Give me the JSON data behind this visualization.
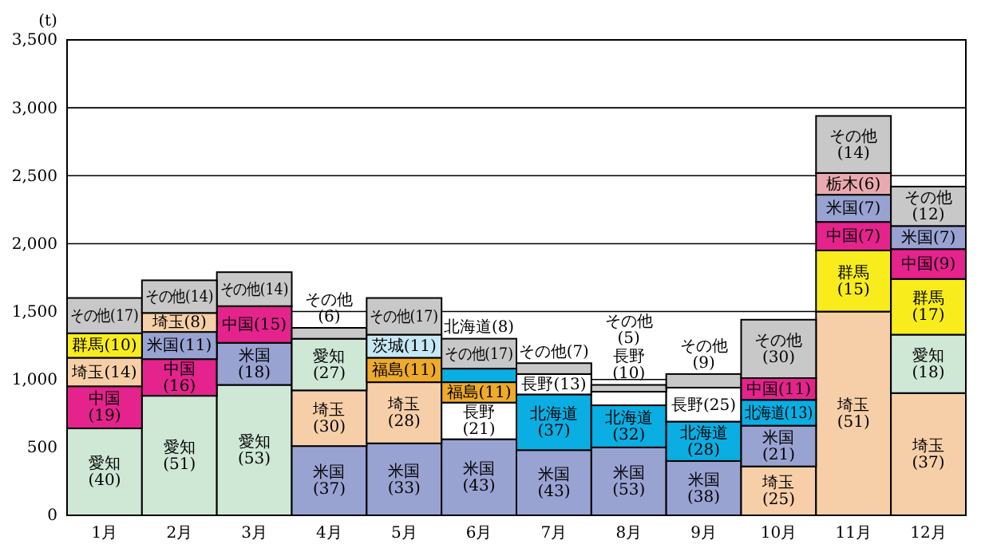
{
  "chart_data": {
    "type": "bar",
    "stacked": true,
    "ylabel": "(t)",
    "categories": [
      "1月",
      "2月",
      "3月",
      "4月",
      "5月",
      "6月",
      "7月",
      "8月",
      "9月",
      "10月",
      "11月",
      "12月"
    ],
    "ylim": [
      0,
      3500
    ],
    "yticks": [
      0,
      500,
      {
        "value": 1000,
        "label": "1,000"
      },
      {
        "value": 1500,
        "label": "1,500"
      },
      {
        "value": 2000,
        "label": "2,000"
      },
      {
        "value": 2500,
        "label": "2,500"
      },
      {
        "value": 3000,
        "label": "3,000"
      },
      {
        "value": 3500,
        "label": "3,500"
      }
    ],
    "grid": "y",
    "series": [
      {
        "values": [
          640,
          880,
          960,
          510,
          530,
          560,
          480,
          500,
          400,
          360,
          1500,
          900
        ],
        "colors": [
          "#cfe8d6",
          "#cfe8d6",
          "#cfe8d6",
          "#99a3d2",
          "#99a3d2",
          "#99a3d2",
          "#99a3d2",
          "#99a3d2",
          "#99a3d2",
          "#f6cfa8",
          "#f6cfa8",
          "#f6cfa8"
        ]
      },
      {
        "values": [
          310,
          270,
          310,
          410,
          450,
          270,
          410,
          310,
          290,
          300,
          450,
          430
        ],
        "colors": [
          "#e4238c",
          "#e4238c",
          "#99a3d2",
          "#f6cfa8",
          "#f6cfa8",
          "#ffffff",
          "#0aaee2",
          "#0aaee2",
          "#0aaee2",
          "#99a3d2",
          "#f8ec1d",
          "#cfe8d6"
        ]
      },
      {
        "values": [
          210,
          200,
          270,
          380,
          180,
          150,
          150,
          100,
          250,
          190,
          210,
          410
        ],
        "colors": [
          "#f6cfa8",
          "#99a3d2",
          "#e4238c",
          "#cfe8d6",
          "#eeaa2a",
          "#eeaa2a",
          "#ffffff",
          "#ffffff",
          "#ffffff",
          "#0aaee2",
          "#e4238c",
          "#f8ec1d"
        ]
      },
      {
        "values": [
          180,
          140,
          250,
          80,
          170,
          100,
          80,
          50,
          100,
          160,
          200,
          220
        ],
        "colors": [
          "#f8ec1d",
          "#f6cfa8",
          "#c8c8c8",
          "#c8c8c8",
          "#c6e8f4",
          "#0aaee2",
          "#c8c8c8",
          "#c8c8c8",
          "#c8c8c8",
          "#e4238c",
          "#99a3d2",
          "#e4238c"
        ]
      },
      {
        "values": [
          260,
          240,
          null,
          null,
          270,
          220,
          null,
          null,
          null,
          430,
          160,
          170
        ],
        "colors": [
          "#c8c8c8",
          "#c8c8c8",
          null,
          null,
          "#c8c8c8",
          "#c8c8c8",
          null,
          null,
          null,
          "#c8c8c8",
          "#e8aab0",
          "#99a3d2"
        ]
      },
      {
        "values": [
          null,
          null,
          null,
          null,
          null,
          null,
          null,
          null,
          null,
          null,
          420,
          290
        ],
        "colors": [
          null,
          null,
          null,
          null,
          null,
          null,
          null,
          null,
          null,
          null,
          "#c8c8c8",
          "#c8c8c8"
        ]
      }
    ],
    "annotations": [
      "愛知\n(40)",
      "中国\n(19)",
      "埼玉(14)",
      "群馬(10)",
      "その他(17)",
      "愛知\n(51)",
      "中国\n(16)",
      "米国(11)",
      "埼玉(8)",
      "その他(14)",
      "愛知\n(53)",
      "米国\n(18)",
      "中国(15)",
      "その他(14)",
      "米国\n(37)",
      "埼玉\n(30)",
      "愛知\n(27)",
      "その他\n(6)",
      "米国\n(33)",
      "埼玉\n(28)",
      "福島(11)",
      "茨城(11)",
      "その他(17)",
      "米国\n(43)",
      "長野\n(21)",
      "福島(11)",
      "北海道(8)",
      "その他(17)",
      "米国\n(43)",
      "北海道\n(37)",
      "長野(13)",
      "その他(7)",
      "米国\n(53)",
      "北海道\n(32)",
      "長野\n(10)",
      "その他\n(5)",
      "米国\n(38)",
      "北海道\n(28)",
      "長野(25)",
      "その他\n(9)",
      "埼玉\n(25)",
      "米国\n(21)",
      "北海道(13)",
      "中国(11)",
      "その他\n(30)",
      "埼玉\n(51)",
      "群馬\n(15)",
      "中国(7)",
      "米国(7)",
      "栃木(6)",
      "その他\n(14)",
      "埼玉\n(37)",
      "愛知\n(18)",
      "群馬\n(17)",
      "中国(9)",
      "米国(7)",
      "その他\n(12)"
    ]
  }
}
